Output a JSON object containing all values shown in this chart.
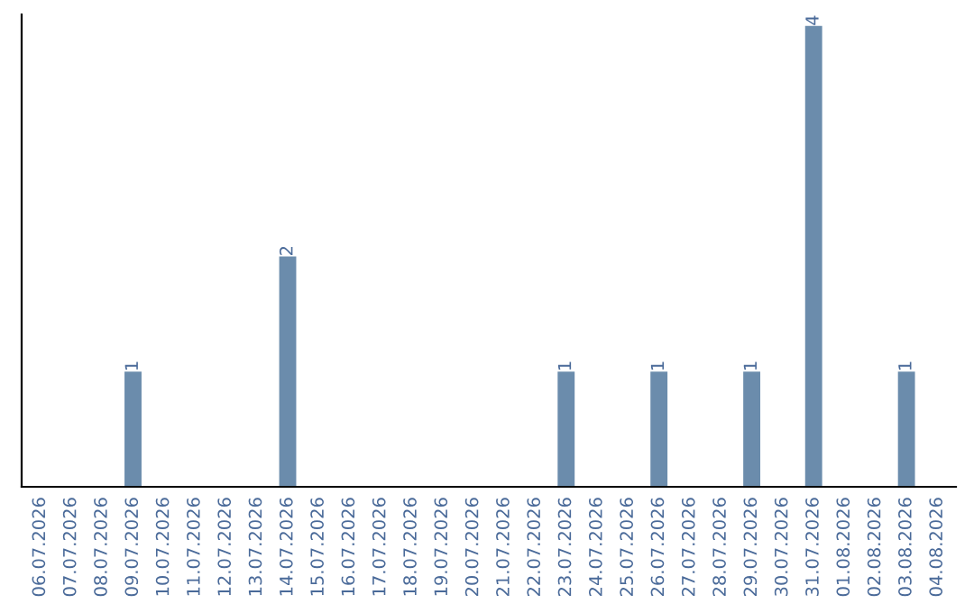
{
  "chart_data": {
    "type": "bar",
    "categories": [
      "06.07.2026",
      "07.07.2026",
      "08.07.2026",
      "09.07.2026",
      "10.07.2026",
      "11.07.2026",
      "12.07.2026",
      "13.07.2026",
      "14.07.2026",
      "15.07.2026",
      "16.07.2026",
      "17.07.2026",
      "18.07.2026",
      "19.07.2026",
      "20.07.2026",
      "21.07.2026",
      "22.07.2026",
      "23.07.2026",
      "24.07.2026",
      "25.07.2026",
      "26.07.2026",
      "27.07.2026",
      "28.07.2026",
      "29.07.2026",
      "30.07.2026",
      "31.07.2026",
      "01.08.2026",
      "02.08.2026",
      "03.08.2026",
      "04.08.2026"
    ],
    "values": [
      0,
      0,
      0,
      1,
      0,
      0,
      0,
      0,
      2,
      0,
      0,
      0,
      0,
      0,
      0,
      0,
      0,
      1,
      0,
      0,
      1,
      0,
      0,
      1,
      0,
      4,
      0,
      0,
      1,
      0
    ],
    "value_labels": [
      null,
      null,
      null,
      "1",
      null,
      null,
      null,
      null,
      "2",
      null,
      null,
      null,
      null,
      null,
      null,
      null,
      null,
      "1",
      null,
      null,
      "1",
      null,
      null,
      "1",
      null,
      "4",
      null,
      null,
      "1",
      null
    ],
    "color": "#6b8cac",
    "ylim": [
      0,
      4.1
    ],
    "tick_labels": "x",
    "grid": false,
    "legend": false
  }
}
